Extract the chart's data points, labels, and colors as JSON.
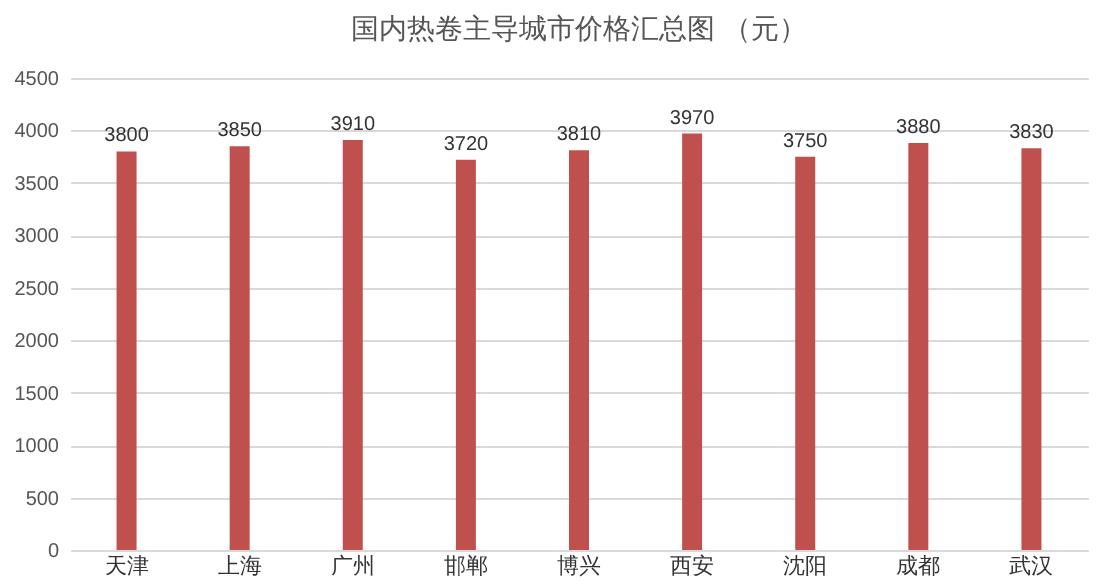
{
  "chart_data": {
    "type": "bar",
    "title": "国内热卷主导城市价格汇总图 （元）",
    "categories": [
      "天津",
      "上海",
      "广州",
      "邯郸",
      "博兴",
      "西安",
      "沈阳",
      "成都",
      "武汉"
    ],
    "values": [
      3800,
      3850,
      3910,
      3720,
      3810,
      3970,
      3750,
      3880,
      3830
    ],
    "color": "#c0504d",
    "ylim": [
      0,
      4500
    ],
    "yticks": [
      0,
      500,
      1000,
      1500,
      2000,
      2500,
      3000,
      3500,
      4000,
      4500
    ],
    "grid": "y",
    "data_labels": true
  }
}
